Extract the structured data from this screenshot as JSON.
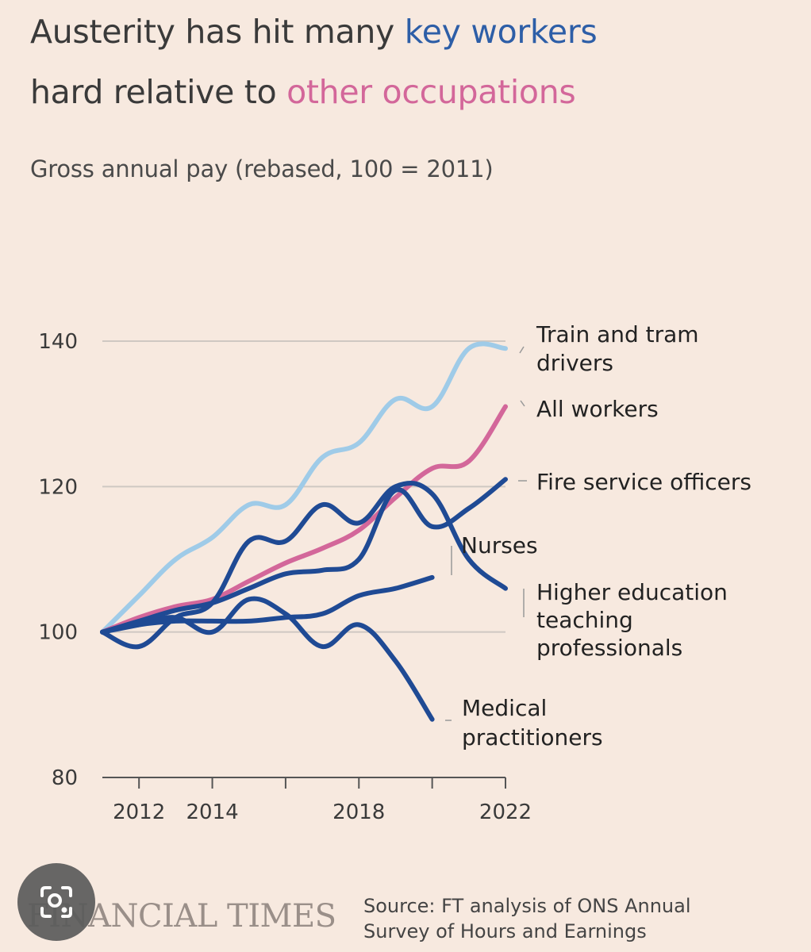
{
  "header": {
    "title_part1": "Austerity has hit many ",
    "title_key": "key workers",
    "title_part2": "hard relative to ",
    "title_other": "other occupations",
    "subtitle": "Gross annual pay (rebased, 100 = 2011)"
  },
  "colors": {
    "key_workers": "#2d5ea7",
    "other": "#d3679a",
    "light_blue": "#9fcbe8",
    "dark_blue": "#1f4a94",
    "background": "#f7e9df"
  },
  "chart_data": {
    "type": "line",
    "title": "Austerity has hit many key workers hard relative to other occupations",
    "ylabel": "Gross annual pay (rebased, 100 = 2011)",
    "xlabel": "",
    "xlim": [
      2011,
      2022
    ],
    "ylim": [
      80,
      140
    ],
    "yticks": [
      80,
      100,
      120,
      140
    ],
    "xticks": [
      2012,
      2014,
      2016,
      2018,
      2020,
      2022
    ],
    "xtick_labels": [
      "2012",
      "2014",
      "",
      "2018",
      "",
      "2022"
    ],
    "grid": true,
    "series": [
      {
        "name": "Train and tram drivers",
        "color": "#9fcbe8",
        "x": [
          2011,
          2012,
          2013,
          2014,
          2015,
          2016,
          2017,
          2018,
          2019,
          2020,
          2021,
          2022
        ],
        "values": [
          100,
          105,
          110,
          113,
          117.5,
          117.5,
          124,
          126,
          132,
          131,
          139,
          139
        ]
      },
      {
        "name": "All workers",
        "color": "#d3679a",
        "x": [
          2011,
          2012,
          2013,
          2014,
          2015,
          2016,
          2017,
          2018,
          2019,
          2020,
          2021,
          2022
        ],
        "values": [
          100,
          102,
          103.5,
          104.5,
          107,
          109.5,
          111.5,
          114,
          118.5,
          122.5,
          123.5,
          131
        ]
      },
      {
        "name": "Fire service officers",
        "color": "#1f4a94",
        "x": [
          2011,
          2012,
          2013,
          2014,
          2015,
          2016,
          2017,
          2018,
          2019,
          2020,
          2021,
          2022
        ],
        "values": [
          100,
          101.5,
          103,
          104,
          106,
          108,
          108.5,
          110,
          119.5,
          114.5,
          117,
          121
        ]
      },
      {
        "name": "Nurses",
        "color": "#1f4a94",
        "x": [
          2011,
          2012,
          2013,
          2014,
          2015,
          2016,
          2017,
          2018,
          2019,
          2020
        ],
        "values": [
          100,
          101,
          101.5,
          101.5,
          101.5,
          102,
          102.5,
          105,
          106,
          107.5
        ]
      },
      {
        "name": "Higher education teaching professionals",
        "color": "#1f4a94",
        "x": [
          2011,
          2012,
          2013,
          2014,
          2015,
          2016,
          2017,
          2018,
          2019,
          2020,
          2021,
          2022
        ],
        "values": [
          100,
          98,
          102,
          104,
          112.5,
          112.5,
          117.5,
          115,
          120,
          119,
          110,
          106
        ]
      },
      {
        "name": "Medical practitioners",
        "color": "#1f4a94",
        "x": [
          2011,
          2012,
          2013,
          2014,
          2015,
          2016,
          2017,
          2018,
          2019,
          2020
        ],
        "values": [
          100,
          101,
          102,
          100,
          104.5,
          102.5,
          98,
          101,
          96,
          88
        ]
      }
    ],
    "labels": {
      "train": [
        "Train and tram",
        "drivers"
      ],
      "all": [
        "All workers"
      ],
      "fire": [
        "Fire service officers"
      ],
      "nurses": [
        "Nurses"
      ],
      "higher_ed": [
        "Higher education",
        "teaching",
        "professionals"
      ],
      "medical": [
        "Medical",
        "practitioners"
      ]
    }
  },
  "footer": {
    "publisher": "FINANCIAL TIMES",
    "source_line1": "Source: FT analysis of ONS Annual",
    "source_line2": "Survey of Hours and Earnings"
  }
}
